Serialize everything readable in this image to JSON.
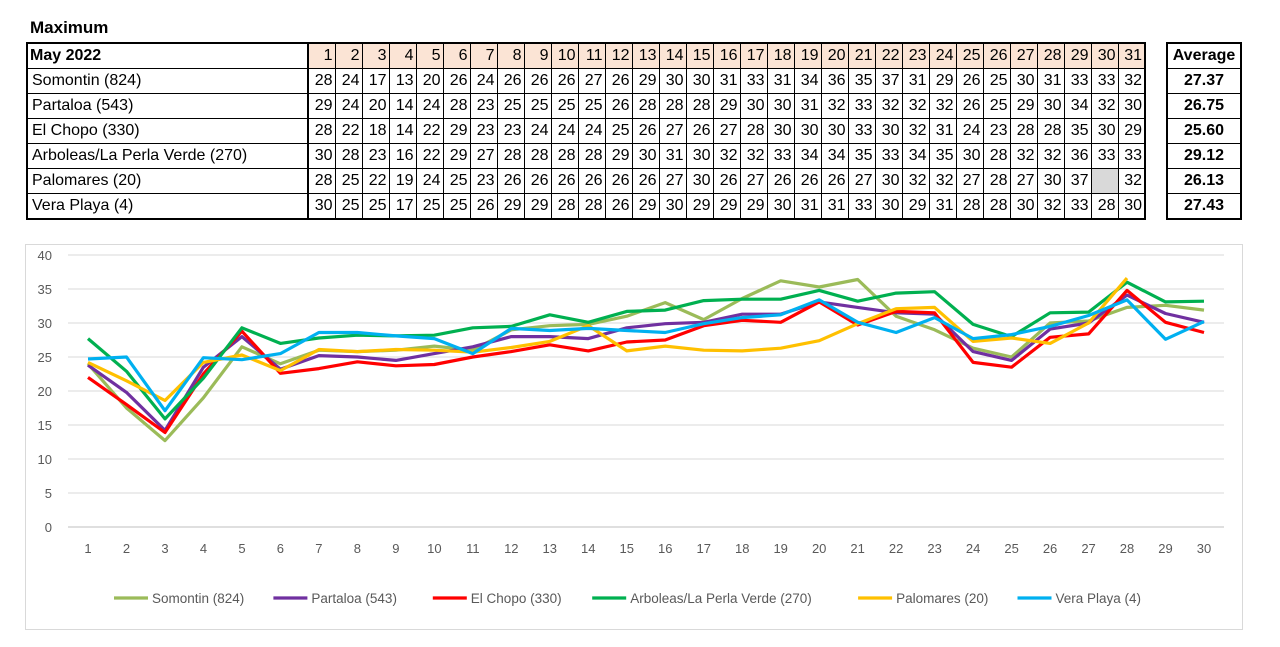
{
  "title": "Maximum",
  "table": {
    "header_label": "May 2022",
    "days": [
      "1",
      "2",
      "3",
      "4",
      "5",
      "6",
      "7",
      "8",
      "9",
      "10",
      "11",
      "12",
      "13",
      "14",
      "15",
      "16",
      "17",
      "18",
      "19",
      "20",
      "21",
      "22",
      "23",
      "24",
      "25",
      "26",
      "27",
      "28",
      "29",
      "30",
      "31"
    ],
    "rows": [
      {
        "name": "Somontin (824)",
        "values": [
          "28",
          "24",
          "17",
          "13",
          "20",
          "26",
          "24",
          "26",
          "26",
          "26",
          "27",
          "26",
          "29",
          "30",
          "30",
          "31",
          "33",
          "31",
          "34",
          "36",
          "35",
          "37",
          "31",
          "29",
          "26",
          "25",
          "30",
          "31",
          "33",
          "33",
          "32"
        ]
      },
      {
        "name": "Partaloa (543)",
        "values": [
          "29",
          "24",
          "20",
          "14",
          "24",
          "28",
          "23",
          "25",
          "25",
          "25",
          "25",
          "26",
          "28",
          "28",
          "28",
          "29",
          "30",
          "30",
          "31",
          "32",
          "33",
          "32",
          "32",
          "32",
          "26",
          "25",
          "29",
          "30",
          "34",
          "32",
          "30"
        ]
      },
      {
        "name": "El Chopo (330)",
        "values": [
          "28",
          "22",
          "18",
          "14",
          "22",
          "29",
          "23",
          "23",
          "24",
          "24",
          "24",
          "25",
          "26",
          "27",
          "26",
          "27",
          "28",
          "30",
          "30",
          "30",
          "33",
          "30",
          "32",
          "31",
          "24",
          "23",
          "28",
          "28",
          "35",
          "30",
          "29"
        ]
      },
      {
        "name": "Arboleas/La Perla Verde (270)",
        "values": [
          "30",
          "28",
          "23",
          "16",
          "22",
          "29",
          "27",
          "28",
          "28",
          "28",
          "28",
          "29",
          "30",
          "31",
          "30",
          "32",
          "32",
          "33",
          "34",
          "34",
          "35",
          "33",
          "34",
          "35",
          "30",
          "28",
          "32",
          "32",
          "36",
          "33",
          "33"
        ]
      },
      {
        "name": "Palomares (20)",
        "values": [
          "28",
          "25",
          "22",
          "19",
          "24",
          "25",
          "23",
          "26",
          "26",
          "26",
          "26",
          "26",
          "26",
          "27",
          "30",
          "26",
          "27",
          "26",
          "26",
          "26",
          "27",
          "30",
          "32",
          "32",
          "27",
          "28",
          "27",
          "30",
          "37",
          "",
          "32"
        ]
      },
      {
        "name": "Vera Playa (4)",
        "values": [
          "30",
          "25",
          "25",
          "17",
          "25",
          "25",
          "26",
          "29",
          "29",
          "28",
          "28",
          "26",
          "29",
          "30",
          "29",
          "29",
          "29",
          "30",
          "31",
          "31",
          "33",
          "30",
          "29",
          "31",
          "28",
          "28",
          "30",
          "32",
          "33",
          "28",
          "30"
        ]
      }
    ],
    "average_header": "Average",
    "averages": [
      "27.37",
      "26.75",
      "25.60",
      "29.12",
      "26.13",
      "27.43"
    ]
  },
  "chart_data": {
    "type": "line",
    "x": [
      1,
      2,
      3,
      4,
      5,
      6,
      7,
      8,
      9,
      10,
      11,
      12,
      13,
      14,
      15,
      16,
      17,
      18,
      19,
      20,
      21,
      22,
      23,
      24,
      25,
      26,
      27,
      28,
      29,
      30
    ],
    "x_tick_labels": [
      "1",
      "2",
      "3",
      "4",
      "5",
      "6",
      "7",
      "8",
      "9",
      "10",
      "11",
      "12",
      "13",
      "14",
      "15",
      "16",
      "17",
      "18",
      "19",
      "20",
      "21",
      "22",
      "23",
      "24",
      "25",
      "26",
      "27",
      "28",
      "29",
      "30"
    ],
    "ylim": [
      0,
      40
    ],
    "y_ticks": [
      "0",
      "5",
      "10",
      "15",
      "20",
      "25",
      "30",
      "35",
      "40"
    ],
    "grid": true,
    "legend_position": "bottom",
    "series": [
      {
        "name": "Somontin (824)",
        "color": "#9bbb59",
        "values": [
          24,
          17.5,
          12.7,
          19,
          26.5,
          24,
          26,
          25.8,
          26,
          26.6,
          26,
          29,
          29.6,
          29.8,
          31,
          33,
          30.5,
          33.6,
          36.2,
          35.3,
          36.4,
          31,
          29,
          26.3,
          25,
          30,
          30.3,
          32.3,
          32.6,
          31.9
        ]
      },
      {
        "name": "Partaloa (543)",
        "color": "#7030a0",
        "values": [
          23.8,
          19.8,
          14.2,
          23.5,
          28,
          23.2,
          25.2,
          25,
          24.5,
          25.5,
          26.5,
          28,
          28,
          27.7,
          29.3,
          29.9,
          30.1,
          31.3,
          31.3,
          33.1,
          32.3,
          31.5,
          31.3,
          25.8,
          24.5,
          29.1,
          30,
          34.1,
          31.4,
          30.1
        ]
      },
      {
        "name": "El Chopo (330)",
        "color": "#ff0000",
        "values": [
          22,
          18,
          13.9,
          22.5,
          28.8,
          22.6,
          23.3,
          24.3,
          23.7,
          23.9,
          25,
          25.8,
          26.8,
          25.9,
          27.2,
          27.5,
          29.6,
          30.4,
          30.1,
          33.1,
          29.7,
          31.7,
          31.5,
          24.2,
          23.5,
          27.9,
          28.4,
          34.8,
          30.1,
          28.6
        ]
      },
      {
        "name": "Arboleas/La Perla Verde (270)",
        "color": "#00b050",
        "values": [
          27.7,
          22.9,
          15.9,
          21.9,
          29.3,
          27,
          27.8,
          28.2,
          28.1,
          28.2,
          29.3,
          29.5,
          31.2,
          30.1,
          31.7,
          31.9,
          33.3,
          33.5,
          33.5,
          34.8,
          33.2,
          34.4,
          34.6,
          29.8,
          28,
          31.5,
          31.6,
          36,
          33.1,
          33.2
        ]
      },
      {
        "name": "Palomares (20)",
        "color": "#ffc000",
        "values": [
          24.2,
          21.5,
          18.6,
          24.2,
          25.3,
          23,
          26.1,
          25.8,
          26.1,
          26,
          25.7,
          26.4,
          27.3,
          29.6,
          25.9,
          26.6,
          26,
          25.9,
          26.3,
          27.4,
          29.9,
          32.1,
          32.3,
          27.3,
          27.8,
          27,
          30,
          36.6,
          null,
          null
        ]
      },
      {
        "name": "Vera Playa (4)",
        "color": "#00b0f0",
        "values": [
          24.7,
          25,
          17.1,
          24.9,
          24.6,
          25.5,
          28.6,
          28.6,
          28.1,
          27.7,
          25.5,
          29.2,
          28.9,
          29.2,
          28.9,
          28.6,
          29.9,
          30.8,
          31.2,
          33.4,
          30.1,
          28.6,
          30.8,
          27.7,
          28.3,
          29.5,
          31.1,
          33.4,
          27.6,
          30.2
        ]
      }
    ]
  }
}
